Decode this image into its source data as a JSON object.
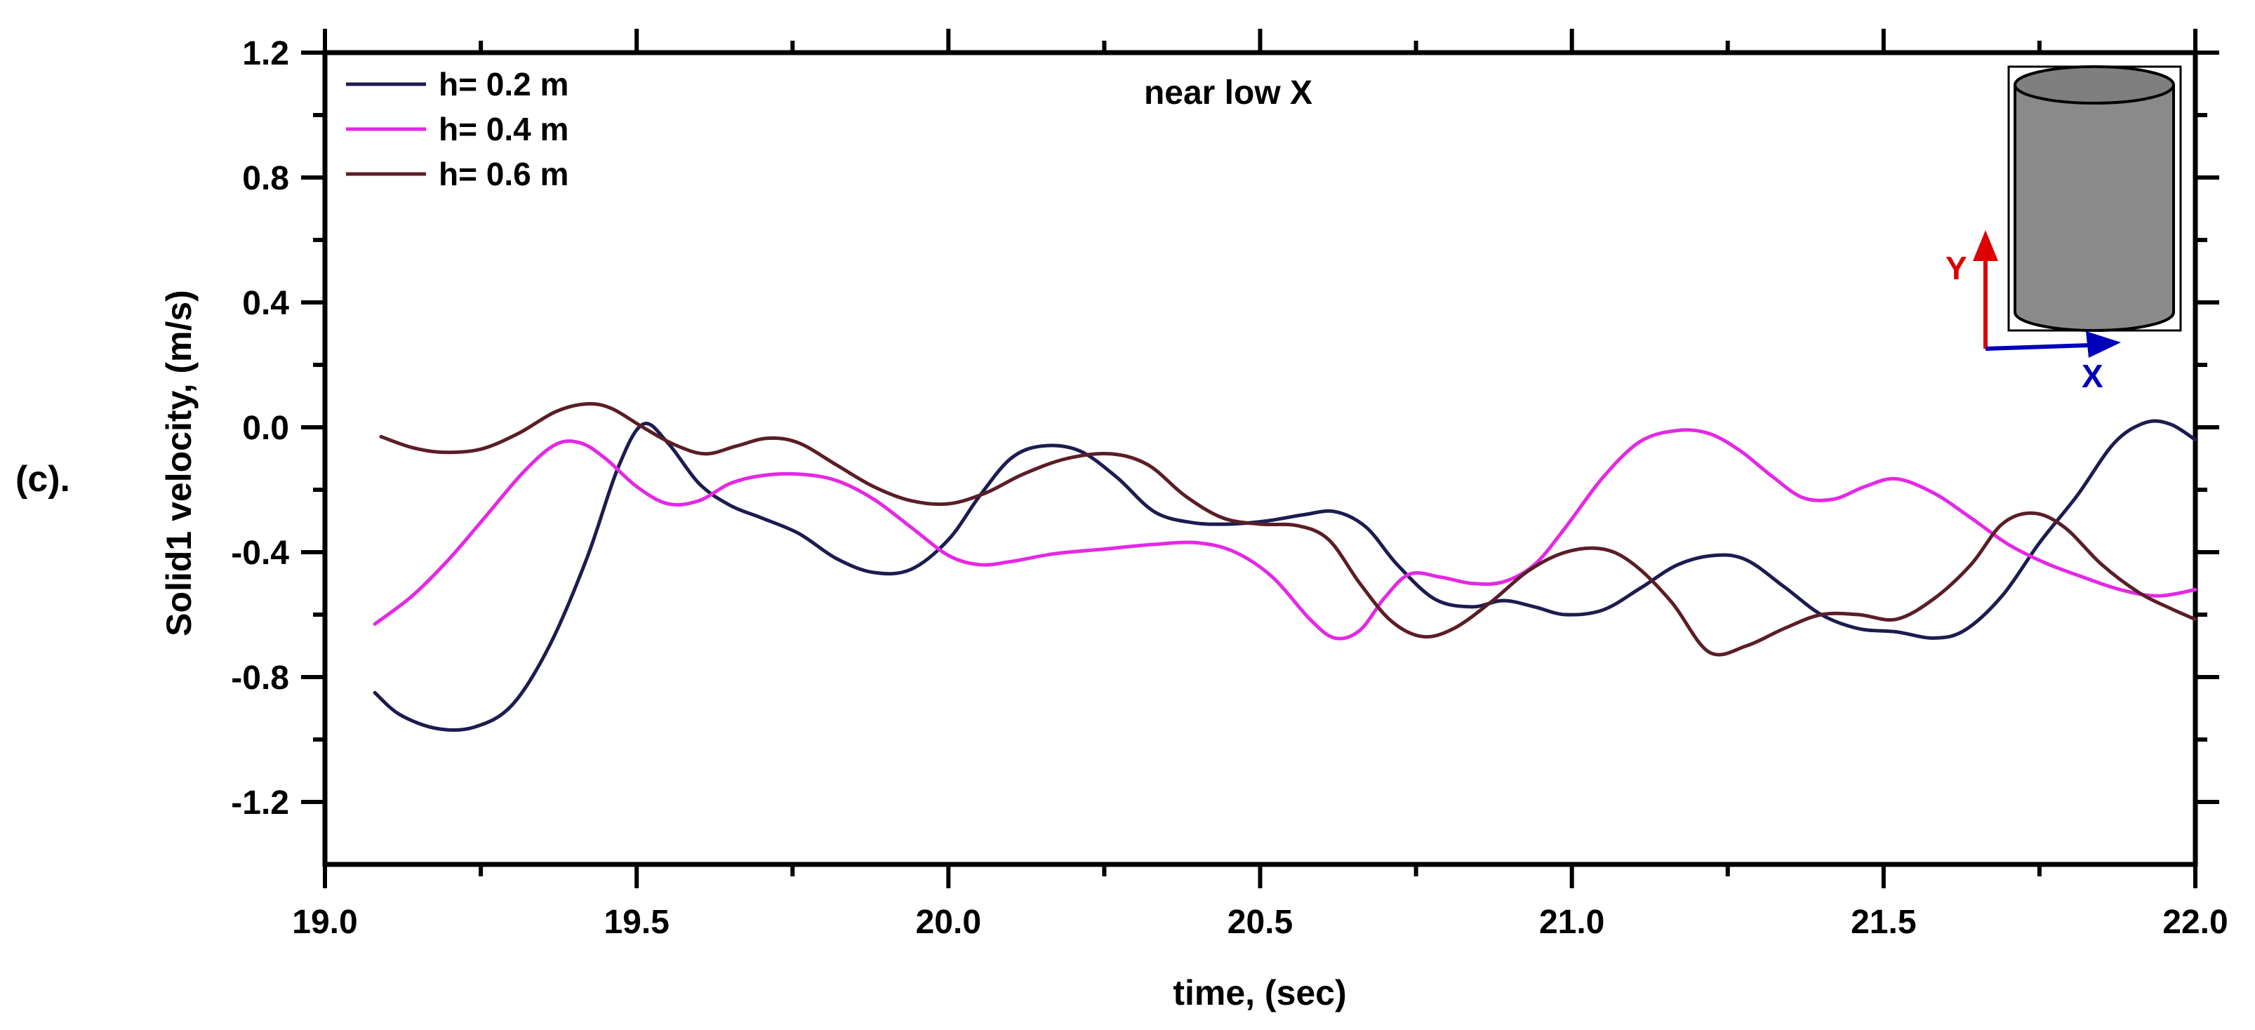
{
  "figure_label": "(c).",
  "colors": {
    "axis": "#000000",
    "background": "#ffffff"
  },
  "inset": {
    "y_label": "Y",
    "x_label": "X",
    "y_arrow_color": "#dd0000",
    "x_arrow_color": "#0000bb",
    "cylinder_fill": "#8a8a8a",
    "cylinder_top_fill": "#7f7f7f",
    "outline_color": "#000000"
  },
  "chart_data": {
    "type": "line",
    "title": "near low X",
    "xlabel": "time, (sec)",
    "ylabel": "Solid1 velocity, (m/s)",
    "xlim": [
      19.0,
      22.0
    ],
    "ylim": [
      -1.4,
      1.2
    ],
    "grid": false,
    "legend_position": "top-left",
    "x_ticks": {
      "values": [
        19.0,
        19.5,
        20.0,
        20.5,
        21.0,
        21.5,
        22.0
      ],
      "labels": [
        "19.0",
        "19.5",
        "20.0",
        "20.5",
        "21.0",
        "21.5",
        "22.0"
      ],
      "minor": [
        19.25,
        19.75,
        20.25,
        20.75,
        21.25,
        21.75
      ]
    },
    "y_ticks": {
      "values": [
        1.2,
        0.8,
        0.4,
        0.0,
        -0.4,
        -0.8,
        -1.2
      ],
      "labels": [
        "1.2",
        "0.8",
        "0.4",
        "0.0",
        "-0.4",
        "-0.8",
        "-1.2"
      ],
      "minor": [
        1.0,
        0.6,
        0.2,
        -0.2,
        -0.6,
        -1.0
      ]
    },
    "series": [
      {
        "name": "h= 0.2 m",
        "color": "#1c1c50",
        "x": [
          19.08,
          19.12,
          19.18,
          19.24,
          19.3,
          19.36,
          19.42,
          19.47,
          19.51,
          19.55,
          19.6,
          19.65,
          19.7,
          19.76,
          19.82,
          19.88,
          19.94,
          20.0,
          20.05,
          20.1,
          20.15,
          20.21,
          20.27,
          20.33,
          20.39,
          20.45,
          20.51,
          20.57,
          20.62,
          20.67,
          20.72,
          20.78,
          20.84,
          20.89,
          20.94,
          20.99,
          21.05,
          21.11,
          21.17,
          21.23,
          21.28,
          21.34,
          21.4,
          21.46,
          21.52,
          21.58,
          21.63,
          21.69,
          21.75,
          21.81,
          21.87,
          21.92,
          21.96,
          22.0
        ],
        "y": [
          -0.85,
          -0.92,
          -0.965,
          -0.96,
          -0.89,
          -0.7,
          -0.42,
          -0.13,
          0.01,
          -0.05,
          -0.18,
          -0.25,
          -0.29,
          -0.34,
          -0.42,
          -0.465,
          -0.455,
          -0.36,
          -0.22,
          -0.1,
          -0.06,
          -0.075,
          -0.16,
          -0.27,
          -0.305,
          -0.31,
          -0.3,
          -0.28,
          -0.27,
          -0.32,
          -0.44,
          -0.55,
          -0.575,
          -0.555,
          -0.575,
          -0.6,
          -0.585,
          -0.515,
          -0.44,
          -0.41,
          -0.425,
          -0.51,
          -0.6,
          -0.645,
          -0.655,
          -0.675,
          -0.65,
          -0.54,
          -0.37,
          -0.22,
          -0.05,
          0.015,
          0.01,
          -0.04
        ]
      },
      {
        "name": "h= 0.4 m",
        "color": "#e428e4",
        "x": [
          19.08,
          19.14,
          19.2,
          19.26,
          19.32,
          19.37,
          19.41,
          19.45,
          19.5,
          19.55,
          19.6,
          19.65,
          19.7,
          19.76,
          19.82,
          19.88,
          19.94,
          20.0,
          20.05,
          20.1,
          20.17,
          20.25,
          20.33,
          20.4,
          20.46,
          20.52,
          20.58,
          20.62,
          20.66,
          20.7,
          20.74,
          20.79,
          20.84,
          20.89,
          20.94,
          20.99,
          21.05,
          21.11,
          21.17,
          21.22,
          21.27,
          21.32,
          21.37,
          21.42,
          21.47,
          21.52,
          21.58,
          21.64,
          21.7,
          21.76,
          21.82,
          21.88,
          21.94,
          22.0
        ],
        "y": [
          -0.63,
          -0.54,
          -0.42,
          -0.28,
          -0.14,
          -0.055,
          -0.05,
          -0.1,
          -0.19,
          -0.245,
          -0.235,
          -0.18,
          -0.155,
          -0.15,
          -0.17,
          -0.23,
          -0.32,
          -0.41,
          -0.44,
          -0.43,
          -0.405,
          -0.39,
          -0.375,
          -0.37,
          -0.4,
          -0.48,
          -0.615,
          -0.675,
          -0.65,
          -0.545,
          -0.47,
          -0.48,
          -0.5,
          -0.495,
          -0.44,
          -0.32,
          -0.16,
          -0.045,
          -0.01,
          -0.02,
          -0.075,
          -0.155,
          -0.225,
          -0.23,
          -0.19,
          -0.165,
          -0.21,
          -0.29,
          -0.375,
          -0.435,
          -0.48,
          -0.52,
          -0.54,
          -0.52
        ]
      },
      {
        "name": "h= 0.6 m",
        "color": "#5a1e26",
        "x": [
          19.09,
          19.14,
          19.19,
          19.25,
          19.31,
          19.37,
          19.42,
          19.46,
          19.51,
          19.56,
          19.61,
          19.66,
          19.71,
          19.76,
          19.82,
          19.88,
          19.94,
          20.0,
          20.06,
          20.12,
          20.19,
          20.26,
          20.32,
          20.38,
          20.44,
          20.5,
          20.56,
          20.61,
          20.66,
          20.71,
          20.76,
          20.81,
          20.87,
          20.93,
          20.99,
          21.05,
          21.1,
          21.16,
          21.22,
          21.28,
          21.34,
          21.4,
          21.46,
          21.52,
          21.58,
          21.64,
          21.69,
          21.74,
          21.79,
          21.85,
          21.91,
          21.96,
          22.0
        ],
        "y": [
          -0.03,
          -0.065,
          -0.08,
          -0.07,
          -0.02,
          0.05,
          0.075,
          0.06,
          0.0,
          -0.055,
          -0.085,
          -0.06,
          -0.035,
          -0.05,
          -0.12,
          -0.19,
          -0.235,
          -0.245,
          -0.21,
          -0.15,
          -0.1,
          -0.085,
          -0.12,
          -0.22,
          -0.29,
          -0.31,
          -0.315,
          -0.36,
          -0.5,
          -0.62,
          -0.67,
          -0.645,
          -0.56,
          -0.46,
          -0.4,
          -0.39,
          -0.44,
          -0.56,
          -0.72,
          -0.7,
          -0.645,
          -0.6,
          -0.6,
          -0.615,
          -0.55,
          -0.44,
          -0.31,
          -0.275,
          -0.32,
          -0.44,
          -0.53,
          -0.58,
          -0.615
        ]
      }
    ]
  }
}
